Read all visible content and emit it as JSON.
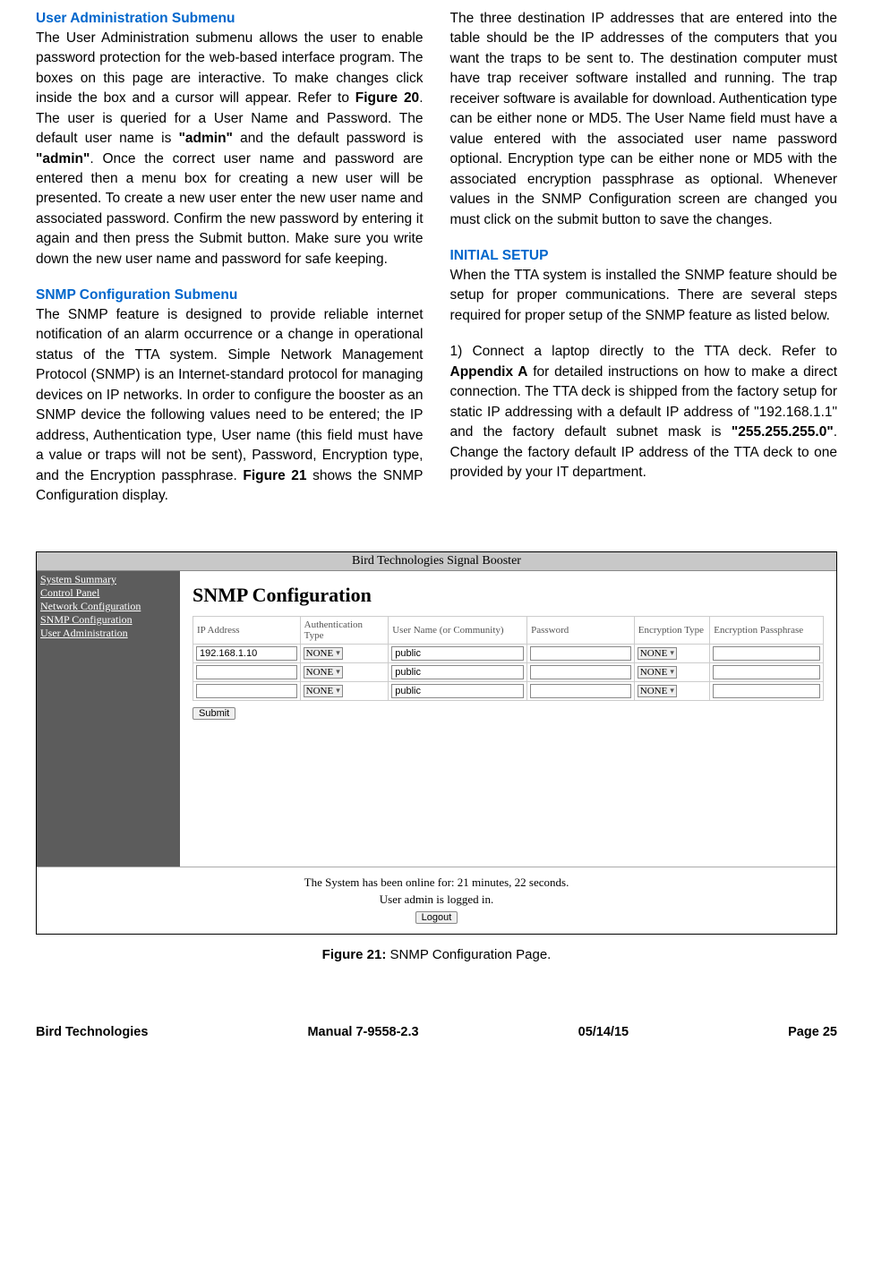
{
  "left": {
    "h1": "User Administration Submenu",
    "p1a": "The User Administration submenu allows the user to enable password protection for the web-based interface program. The boxes on this page are interactive. To make changes click inside the box and a cursor will appear. Refer to ",
    "p1b": "Figure 20",
    "p1c": ". The user is queried for a User Name and Password. The default user name is ",
    "p1d": "\"admin\"",
    "p1e": " and the default password is ",
    "p1f": "\"admin\"",
    "p1g": ". Once the correct user name and password are entered then a menu box for creating a new user will be presented. To create a new user enter the new user name and associated password. Confirm the new password by entering it again and then press the Submit button. Make sure you write down the new user name and password for safe keeping.",
    "h2": "SNMP Configuration Submenu",
    "p2a": "The SNMP feature is designed to provide reliable internet notification of an alarm occurrence or a change in operational status of the TTA system. Simple Network Management Protocol (SNMP) is an Internet-standard protocol for managing devices on IP networks. In order to configure the booster as an SNMP device the following values need to be entered; the IP address, Authentication type, User name (this field must have a value or traps will not be sent), Password, Encryption type, and the Encryption passphrase. ",
    "p2b": "Figure 21",
    "p2c": " shows the SNMP Configuration display."
  },
  "right": {
    "p1": "The three destination IP addresses that are entered into the table should be the IP addresses of the computers that you want the traps to be sent to. The destination computer must have trap receiver software installed and running. The trap receiver software is available for download. Authentication type can be either none or MD5. The User Name field must have a value entered with the associated user name password optional. Encryption type can be either none or MD5 with the associated encryption passphrase as optional. Whenever values in the SNMP Configuration screen are changed you must click on the submit button to save the changes.",
    "h1": "INITIAL SETUP",
    "p2": "When the TTA system is installed the SNMP feature should be setup for proper communications. There are several steps required for proper setup of the SNMP feature as listed below.",
    "li1a": "1)  Connect a laptop directly to the TTA deck. Refer to ",
    "li1b": "Appendix A",
    "li1c": " for detailed instructions on how to make a direct connection. The TTA deck is shipped from the factory setup for static IP addressing with a default IP address of \"192.168.1.1\" and the factory default subnet mask is ",
    "li1d": "\"255.255.255.0\"",
    "li1e": ". Change the factory default IP address of the TTA deck to one provided by your IT department."
  },
  "screenshot": {
    "titlebar": "Bird Technologies Signal Booster",
    "nav": [
      "System Summary",
      "Control Panel",
      "Network Configuration",
      "SNMP Configuration",
      "User Administration"
    ],
    "heading": "SNMP Configuration",
    "headers": [
      "IP Address",
      "Authentication Type",
      "User Name (or Community)",
      "Password",
      "Encryption Type",
      "Encryption Passphrase"
    ],
    "rows": [
      {
        "ip": "192.168.1.10",
        "auth": "NONE",
        "user": "public",
        "pass": "",
        "enc": "NONE",
        "phrase": ""
      },
      {
        "ip": "",
        "auth": "NONE",
        "user": "public",
        "pass": "",
        "enc": "NONE",
        "phrase": ""
      },
      {
        "ip": "",
        "auth": "NONE",
        "user": "public",
        "pass": "",
        "enc": "NONE",
        "phrase": ""
      }
    ],
    "submit": "Submit",
    "uptime": "The System has been online for: 21 minutes, 22 seconds.",
    "loggedin": "User admin is logged in.",
    "logout": "Logout"
  },
  "caption": {
    "bold": "Figure 21:",
    "rest": " SNMP Configuration Page."
  },
  "footer": {
    "left": "Bird Technologies",
    "center": "Manual 7-9558-2.3",
    "date": "05/14/15",
    "page": "Page 25"
  }
}
